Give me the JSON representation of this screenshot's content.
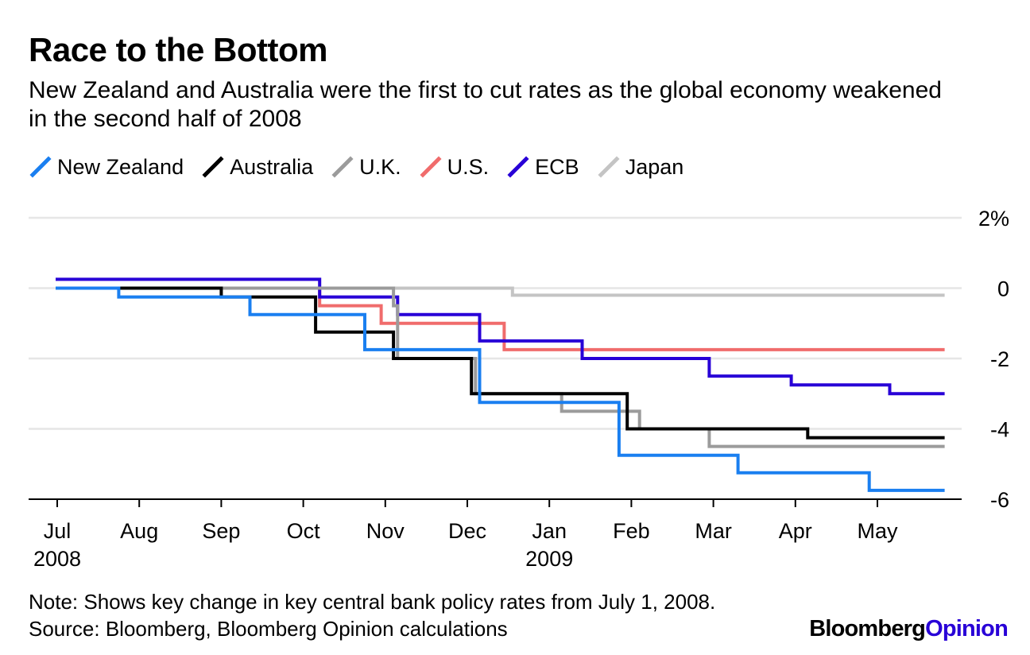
{
  "header": {
    "title": "Race to the Bottom",
    "subtitle": "New Zealand and Australia were the first to cut rates as the global economy weakened in the second half of 2008"
  },
  "footer": {
    "note": "Note: Shows key change in key central bank policy rates from July 1, 2008.",
    "source": "Source: Bloomberg, Bloomberg Opinion calculations",
    "brand_primary": "Bloomberg",
    "brand_secondary": "Opinion"
  },
  "colors": {
    "grid": "#e6e6e6",
    "axis": "#000000",
    "brand_accent": "#2800d7"
  },
  "chart_data": {
    "type": "line",
    "title": "Race to the Bottom",
    "subtitle": "New Zealand and Australia were the first to cut rates as the global economy weakened in the second half of 2008",
    "xlabel": "",
    "ylabel": "",
    "x_unit": "months since Jul 1, 2008",
    "xlim": [
      -0.35,
      10.9
    ],
    "ylim": [
      -6,
      2
    ],
    "y_ticks": [
      2,
      0,
      -2,
      -4,
      -6
    ],
    "y_tick_labels": [
      "2%",
      "0",
      "-2",
      "-4",
      "-6"
    ],
    "x_ticks": [
      0,
      1,
      2,
      3,
      4,
      5,
      6,
      7,
      8,
      9,
      10
    ],
    "x_tick_labels": [
      "Jul",
      "Aug",
      "Sep",
      "Oct",
      "Nov",
      "Dec",
      "Jan",
      "Feb",
      "Mar",
      "Apr",
      "May"
    ],
    "year_labels": [
      {
        "x": 0,
        "label": "2008"
      },
      {
        "x": 6,
        "label": "2009"
      }
    ],
    "legend_position": "top-left",
    "grid": true,
    "series": [
      {
        "name": "Japan",
        "color": "#c4c4c4",
        "points": [
          [
            0,
            0
          ],
          [
            5.55,
            0
          ],
          [
            5.55,
            -0.2
          ],
          [
            10.8,
            -0.2
          ]
        ]
      },
      {
        "name": "U.S.",
        "color": "#f06c6c",
        "points": [
          [
            0,
            0
          ],
          [
            3.2,
            0
          ],
          [
            3.2,
            -0.5
          ],
          [
            3.95,
            -0.5
          ],
          [
            3.95,
            -1.0
          ],
          [
            5.45,
            -1.0
          ],
          [
            5.45,
            -1.75
          ],
          [
            10.8,
            -1.75
          ]
        ]
      },
      {
        "name": "ECB",
        "color": "#2800d7",
        "points": [
          [
            0,
            0.25
          ],
          [
            3.2,
            0.25
          ],
          [
            3.2,
            -0.25
          ],
          [
            4.15,
            -0.25
          ],
          [
            4.15,
            -0.75
          ],
          [
            5.15,
            -0.75
          ],
          [
            5.15,
            -1.5
          ],
          [
            6.4,
            -1.5
          ],
          [
            6.4,
            -2.0
          ],
          [
            7.95,
            -2.0
          ],
          [
            7.95,
            -2.5
          ],
          [
            8.95,
            -2.5
          ],
          [
            8.95,
            -2.75
          ],
          [
            10.15,
            -2.75
          ],
          [
            10.15,
            -3.0
          ],
          [
            10.8,
            -3.0
          ]
        ]
      },
      {
        "name": "U.K.",
        "color": "#9b9b9b",
        "points": [
          [
            0,
            0
          ],
          [
            4.1,
            0
          ],
          [
            4.1,
            -0.5
          ],
          [
            4.15,
            -0.5
          ],
          [
            4.15,
            -2.0
          ],
          [
            5.1,
            -2.0
          ],
          [
            5.1,
            -3.0
          ],
          [
            6.15,
            -3.0
          ],
          [
            6.15,
            -3.5
          ],
          [
            7.1,
            -3.5
          ],
          [
            7.1,
            -4.0
          ],
          [
            7.95,
            -4.0
          ],
          [
            7.95,
            -4.5
          ],
          [
            10.8,
            -4.5
          ]
        ]
      },
      {
        "name": "Australia",
        "color": "#000000",
        "points": [
          [
            0,
            0
          ],
          [
            2.0,
            0
          ],
          [
            2.0,
            -0.25
          ],
          [
            3.15,
            -0.25
          ],
          [
            3.15,
            -1.25
          ],
          [
            4.1,
            -1.25
          ],
          [
            4.1,
            -2.0
          ],
          [
            5.05,
            -2.0
          ],
          [
            5.05,
            -3.0
          ],
          [
            6.95,
            -3.0
          ],
          [
            6.95,
            -4.0
          ],
          [
            9.15,
            -4.0
          ],
          [
            9.15,
            -4.25
          ],
          [
            10.8,
            -4.25
          ]
        ]
      },
      {
        "name": "New Zealand",
        "color": "#1a7ff0",
        "points": [
          [
            0,
            0
          ],
          [
            0.75,
            0
          ],
          [
            0.75,
            -0.25
          ],
          [
            2.35,
            -0.25
          ],
          [
            2.35,
            -0.75
          ],
          [
            3.75,
            -0.75
          ],
          [
            3.75,
            -1.75
          ],
          [
            5.15,
            -1.75
          ],
          [
            5.15,
            -3.25
          ],
          [
            6.85,
            -3.25
          ],
          [
            6.85,
            -4.75
          ],
          [
            8.3,
            -4.75
          ],
          [
            8.3,
            -5.25
          ],
          [
            9.9,
            -5.25
          ],
          [
            9.9,
            -5.75
          ],
          [
            10.8,
            -5.75
          ]
        ]
      }
    ],
    "legend_order": [
      "New Zealand",
      "Australia",
      "U.K.",
      "U.S.",
      "ECB",
      "Japan"
    ]
  }
}
